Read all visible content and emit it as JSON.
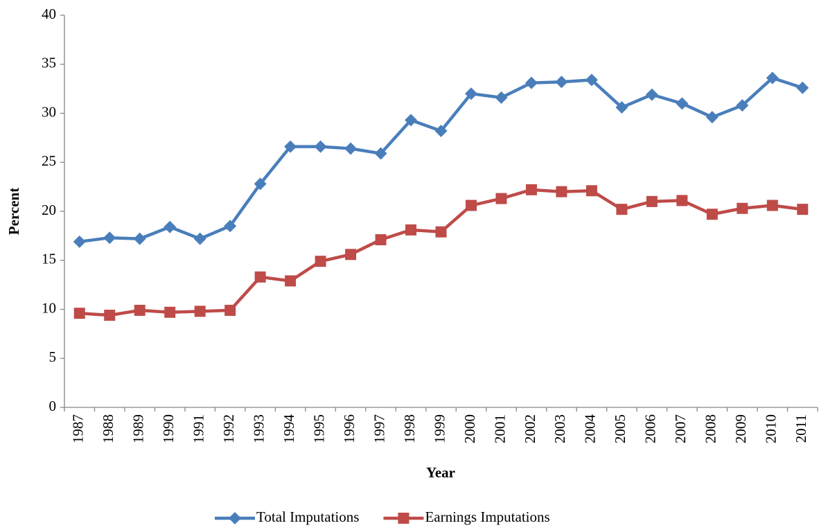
{
  "chart_data": {
    "type": "line",
    "xlabel": "Year",
    "ylabel": "Percent",
    "categories": [
      "1987",
      "1988",
      "1989",
      "1990",
      "1991",
      "1992",
      "1993",
      "1994",
      "1995",
      "1996",
      "1997",
      "1998",
      "1999",
      "2000",
      "2001",
      "2002",
      "2003",
      "2004",
      "2005",
      "2006",
      "2007",
      "2008",
      "2009",
      "2010",
      "2011"
    ],
    "series": [
      {
        "name": "Total Imputations",
        "color": "#4a7ebb",
        "marker": "diamond",
        "values": [
          16.9,
          17.3,
          17.2,
          18.4,
          17.2,
          18.5,
          22.8,
          26.6,
          26.6,
          26.4,
          25.9,
          29.3,
          28.2,
          32.0,
          31.6,
          33.1,
          33.2,
          33.4,
          30.6,
          31.9,
          31.0,
          29.6,
          30.8,
          33.6,
          32.6
        ]
      },
      {
        "name": "Earnings Imputations",
        "color": "#be4b48",
        "marker": "square",
        "values": [
          9.6,
          9.4,
          9.9,
          9.7,
          9.8,
          9.9,
          13.3,
          12.9,
          14.9,
          15.6,
          17.1,
          18.1,
          17.9,
          20.6,
          21.3,
          22.2,
          22.0,
          22.1,
          20.2,
          21.0,
          21.1,
          19.7,
          20.3,
          20.6,
          20.2
        ]
      }
    ],
    "ylim": [
      0,
      40
    ],
    "yticks": [
      0,
      5,
      10,
      15,
      20,
      25,
      30,
      35,
      40
    ],
    "grid": false,
    "legend": "bottom"
  }
}
